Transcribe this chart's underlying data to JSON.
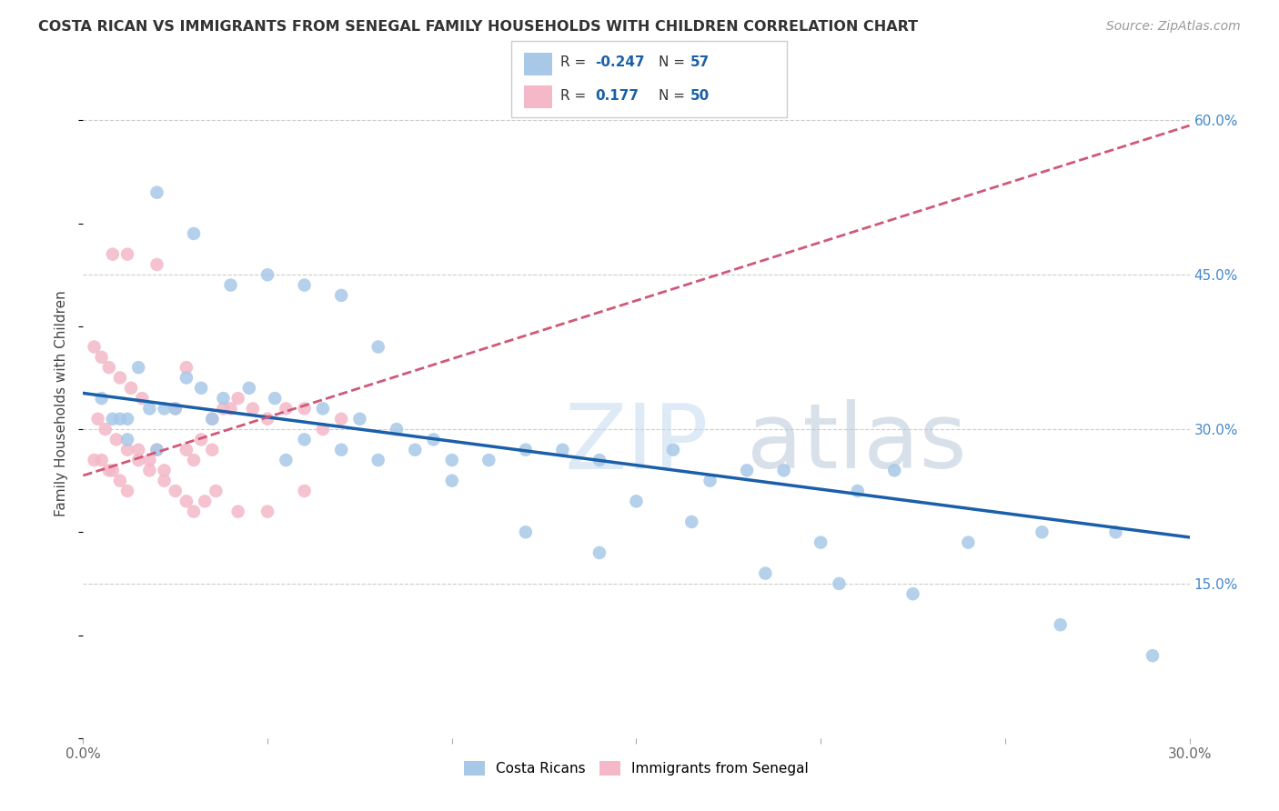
{
  "title": "COSTA RICAN VS IMMIGRANTS FROM SENEGAL FAMILY HOUSEHOLDS WITH CHILDREN CORRELATION CHART",
  "source": "Source: ZipAtlas.com",
  "ylabel": "Family Households with Children",
  "xlim": [
    0.0,
    0.3
  ],
  "ylim": [
    0.0,
    0.65
  ],
  "yticks": [
    0.15,
    0.3,
    0.45,
    0.6
  ],
  "ytick_labels": [
    "15.0%",
    "30.0%",
    "45.0%",
    "60.0%"
  ],
  "xticks": [
    0.0,
    0.05,
    0.1,
    0.15,
    0.2,
    0.25,
    0.3
  ],
  "xtick_labels": [
    "0.0%",
    "",
    "",
    "",
    "",
    "",
    "30.0%"
  ],
  "blue_color": "#a8c8e8",
  "pink_color": "#f4b8c8",
  "blue_line_color": "#1a5fa8",
  "pink_line_color": "#d05878",
  "background_color": "#ffffff",
  "grid_color": "#cccccc",
  "R_blue": -0.247,
  "N_blue": 57,
  "R_pink": 0.177,
  "N_pink": 50,
  "blue_scatter_x": [
    0.02,
    0.03,
    0.04,
    0.05,
    0.06,
    0.07,
    0.08,
    0.09,
    0.1,
    0.12,
    0.14,
    0.16,
    0.18,
    0.2,
    0.22,
    0.24,
    0.26,
    0.28,
    0.005,
    0.008,
    0.01,
    0.012,
    0.015,
    0.018,
    0.022,
    0.025,
    0.028,
    0.032,
    0.038,
    0.045,
    0.052,
    0.065,
    0.075,
    0.085,
    0.095,
    0.11,
    0.13,
    0.15,
    0.17,
    0.19,
    0.21,
    0.012,
    0.02,
    0.035,
    0.055,
    0.06,
    0.07,
    0.08,
    0.1,
    0.12,
    0.14,
    0.165,
    0.185,
    0.205,
    0.225,
    0.265,
    0.29
  ],
  "blue_scatter_y": [
    0.53,
    0.49,
    0.44,
    0.45,
    0.44,
    0.43,
    0.38,
    0.28,
    0.27,
    0.28,
    0.27,
    0.28,
    0.26,
    0.19,
    0.26,
    0.19,
    0.2,
    0.2,
    0.33,
    0.31,
    0.31,
    0.31,
    0.36,
    0.32,
    0.32,
    0.32,
    0.35,
    0.34,
    0.33,
    0.34,
    0.33,
    0.32,
    0.31,
    0.3,
    0.29,
    0.27,
    0.28,
    0.23,
    0.25,
    0.26,
    0.24,
    0.29,
    0.28,
    0.31,
    0.27,
    0.29,
    0.28,
    0.27,
    0.25,
    0.2,
    0.18,
    0.21,
    0.16,
    0.15,
    0.14,
    0.11,
    0.08
  ],
  "pink_scatter_x": [
    0.003,
    0.005,
    0.007,
    0.01,
    0.013,
    0.016,
    0.004,
    0.006,
    0.009,
    0.012,
    0.015,
    0.018,
    0.022,
    0.025,
    0.028,
    0.03,
    0.033,
    0.036,
    0.04,
    0.003,
    0.005,
    0.007,
    0.008,
    0.01,
    0.012,
    0.015,
    0.018,
    0.02,
    0.022,
    0.025,
    0.028,
    0.03,
    0.032,
    0.035,
    0.038,
    0.042,
    0.046,
    0.05,
    0.055,
    0.06,
    0.065,
    0.07,
    0.008,
    0.012,
    0.02,
    0.028,
    0.035,
    0.042,
    0.05,
    0.06
  ],
  "pink_scatter_y": [
    0.38,
    0.37,
    0.36,
    0.35,
    0.34,
    0.33,
    0.31,
    0.3,
    0.29,
    0.28,
    0.27,
    0.26,
    0.25,
    0.24,
    0.23,
    0.22,
    0.23,
    0.24,
    0.32,
    0.27,
    0.27,
    0.26,
    0.26,
    0.25,
    0.24,
    0.28,
    0.27,
    0.28,
    0.26,
    0.32,
    0.28,
    0.27,
    0.29,
    0.31,
    0.32,
    0.33,
    0.32,
    0.31,
    0.32,
    0.32,
    0.3,
    0.31,
    0.47,
    0.47,
    0.46,
    0.36,
    0.28,
    0.22,
    0.22,
    0.24
  ],
  "blue_line_x0": 0.0,
  "blue_line_x1": 0.3,
  "blue_line_y0": 0.335,
  "blue_line_y1": 0.195,
  "pink_line_x0": 0.0,
  "pink_line_x1": 0.3,
  "pink_line_y0": 0.255,
  "pink_line_y1": 0.595
}
